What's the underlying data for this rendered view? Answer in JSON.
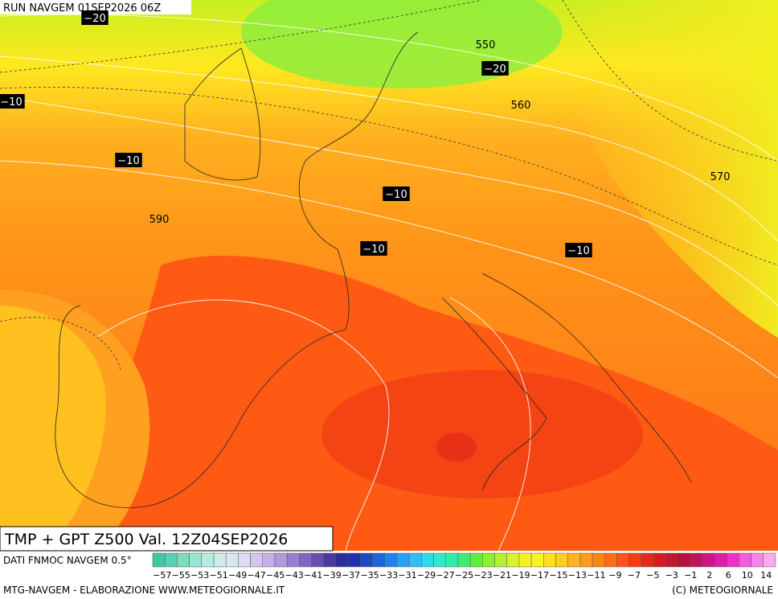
{
  "header": "RUN NAVGEM 01SEP2026 06Z",
  "title": "TMP + GPT Z500 Val. 12Z04SEP2026",
  "map_labels": [
    "−20",
    "550",
    "−20",
    "560",
    "−10",
    "−10",
    "570",
    "−10",
    "590",
    "−10",
    "−10"
  ],
  "legend": {
    "source": "DATI FNMOC NAVGEM 0.5°",
    "labels": [
      "−57",
      "−55",
      "−53",
      "−51",
      "−49",
      "−47",
      "−45",
      "−43",
      "−41",
      "−39",
      "−37",
      "−35",
      "−33",
      "−31",
      "−29",
      "−27",
      "−25",
      "−23",
      "−21",
      "−19",
      "−17",
      "−15",
      "−13",
      "−11",
      "−9",
      "−7",
      "−5",
      "−3",
      "−1",
      "2",
      "6",
      "10",
      "14"
    ],
    "colors": [
      "#3cc8a0",
      "#5ad2b0",
      "#7adcc0",
      "#9ae6d2",
      "#b6eee0",
      "#cceee8",
      "#d8e8f0",
      "#dcdcf4",
      "#d2c8ee",
      "#c4b0e6",
      "#b298dc",
      "#9c7ed0",
      "#8464c0",
      "#6a4cb0",
      "#4a3aa0",
      "#2c2c98",
      "#1e30b0",
      "#1e48c8",
      "#1e64dc",
      "#2082ec",
      "#28a0f4",
      "#30bef4",
      "#34d8ee",
      "#30e8d0",
      "#30ecaa",
      "#3cee78",
      "#60ee3c",
      "#8cf030",
      "#b4f030",
      "#d8f428",
      "#f0f420",
      "#fff020",
      "#ffe020",
      "#ffcc20",
      "#ffb420",
      "#ff9c1c",
      "#ff8418",
      "#ff6c14",
      "#ff5414",
      "#f63c14",
      "#e82818",
      "#d41c24",
      "#c01830",
      "#b8103c",
      "#c01060",
      "#d01484",
      "#e01ca8",
      "#ee30c8",
      "#f45cdc",
      "#f884e8",
      "#fcaaf0"
    ]
  },
  "footer": {
    "left": "MTG-NAVGEM - ELABORAZIONE WWW.METEOGIORNALE.IT",
    "right": "(C) METEOGIORNALE"
  }
}
